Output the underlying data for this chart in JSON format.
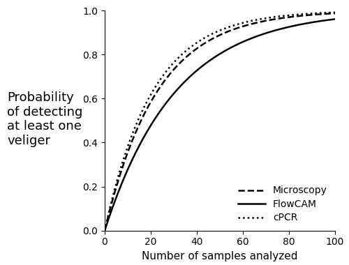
{
  "title": "",
  "xlabel": "Number of samples analyzed",
  "ylabel_lines": [
    "Probability",
    "of detecting",
    "at least one",
    "veliger"
  ],
  "xlim": [
    0,
    100
  ],
  "ylim": [
    0.0,
    1.0
  ],
  "xticks": [
    0,
    20,
    40,
    60,
    80,
    100
  ],
  "yticks": [
    0.0,
    0.2,
    0.4,
    0.6,
    0.8,
    1.0
  ],
  "p_microscopy": 0.043,
  "p_flowcam": 0.032,
  "p_cpcr": 0.047,
  "line_color": "#000000",
  "background_color": "#ffffff",
  "legend_labels": [
    "Microscopy",
    "FlowCAM",
    "cPCR"
  ],
  "fontsize_axis_label": 11,
  "fontsize_tick": 10,
  "fontsize_legend": 10,
  "fontsize_ylabel": 13,
  "linewidth": 1.8
}
